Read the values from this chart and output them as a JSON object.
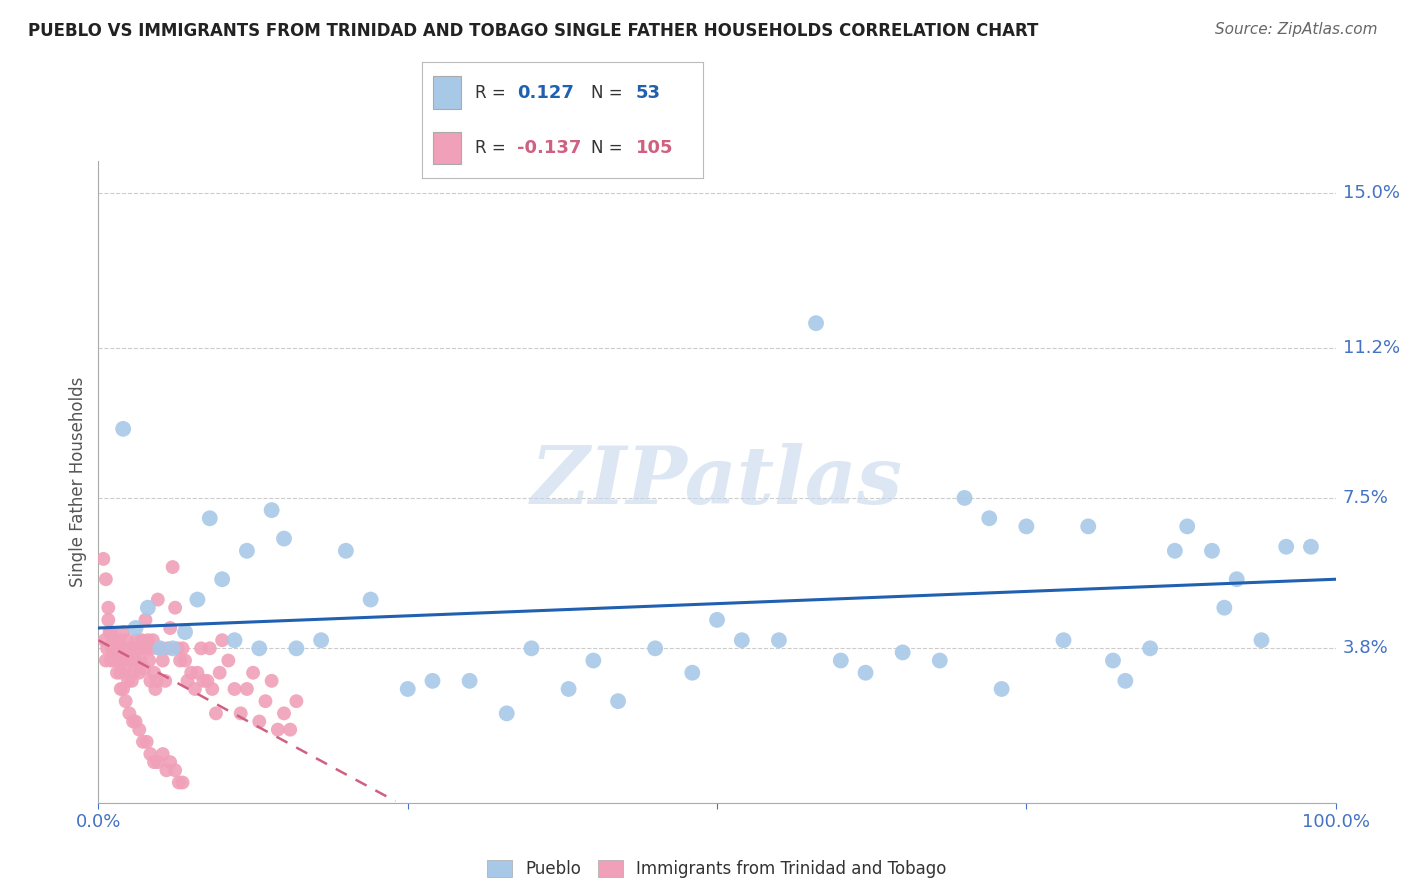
{
  "title": "PUEBLO VS IMMIGRANTS FROM TRINIDAD AND TOBAGO SINGLE FATHER HOUSEHOLDS CORRELATION CHART",
  "source": "Source: ZipAtlas.com",
  "ylabel": "Single Father Households",
  "legend_labels": [
    "Pueblo",
    "Immigrants from Trinidad and Tobago"
  ],
  "pueblo_color": "#a8c8e8",
  "pueblo_line_color": "#2060b0",
  "immigrant_color": "#f0a0b8",
  "immigrant_line_color": "#d06080",
  "r_pueblo": "0.127",
  "n_pueblo": "53",
  "r_immigrant": "-0.137",
  "n_immigrant": "105",
  "xmin": 0.0,
  "xmax": 1.0,
  "ymin": 0.0,
  "ymax": 0.158,
  "yticks": [
    0.0,
    0.038,
    0.075,
    0.112,
    0.15
  ],
  "ytick_labels": [
    "",
    "3.8%",
    "7.5%",
    "11.2%",
    "15.0%"
  ],
  "bg_color": "#ffffff",
  "grid_color": "#cccccc",
  "title_color": "#222222",
  "tick_label_color": "#4472c4",
  "pueblo_x": [
    0.02,
    0.03,
    0.04,
    0.05,
    0.06,
    0.07,
    0.08,
    0.09,
    0.1,
    0.11,
    0.12,
    0.13,
    0.14,
    0.15,
    0.16,
    0.18,
    0.2,
    0.22,
    0.25,
    0.27,
    0.3,
    0.33,
    0.35,
    0.38,
    0.4,
    0.42,
    0.45,
    0.48,
    0.5,
    0.52,
    0.55,
    0.58,
    0.6,
    0.62,
    0.65,
    0.68,
    0.7,
    0.72,
    0.73,
    0.75,
    0.78,
    0.8,
    0.82,
    0.83,
    0.85,
    0.87,
    0.88,
    0.9,
    0.91,
    0.92,
    0.94,
    0.96,
    0.98
  ],
  "pueblo_y": [
    0.092,
    0.043,
    0.048,
    0.038,
    0.038,
    0.042,
    0.05,
    0.07,
    0.055,
    0.04,
    0.062,
    0.038,
    0.072,
    0.065,
    0.038,
    0.04,
    0.062,
    0.05,
    0.028,
    0.03,
    0.03,
    0.022,
    0.038,
    0.028,
    0.035,
    0.025,
    0.038,
    0.032,
    0.045,
    0.04,
    0.04,
    0.118,
    0.035,
    0.032,
    0.037,
    0.035,
    0.075,
    0.07,
    0.028,
    0.068,
    0.04,
    0.068,
    0.035,
    0.03,
    0.038,
    0.062,
    0.068,
    0.062,
    0.048,
    0.055,
    0.04,
    0.063,
    0.063
  ],
  "immigrant_x": [
    0.005,
    0.006,
    0.007,
    0.008,
    0.009,
    0.01,
    0.011,
    0.012,
    0.013,
    0.014,
    0.015,
    0.016,
    0.017,
    0.018,
    0.019,
    0.02,
    0.021,
    0.022,
    0.023,
    0.024,
    0.025,
    0.026,
    0.027,
    0.028,
    0.029,
    0.03,
    0.031,
    0.032,
    0.033,
    0.034,
    0.035,
    0.036,
    0.037,
    0.038,
    0.039,
    0.04,
    0.041,
    0.042,
    0.043,
    0.044,
    0.045,
    0.046,
    0.047,
    0.048,
    0.049,
    0.05,
    0.052,
    0.054,
    0.056,
    0.058,
    0.06,
    0.062,
    0.064,
    0.066,
    0.068,
    0.07,
    0.072,
    0.075,
    0.078,
    0.08,
    0.083,
    0.085,
    0.088,
    0.09,
    0.092,
    0.095,
    0.098,
    0.1,
    0.105,
    0.11,
    0.115,
    0.12,
    0.125,
    0.13,
    0.135,
    0.14,
    0.145,
    0.15,
    0.155,
    0.16,
    0.004,
    0.006,
    0.008,
    0.01,
    0.012,
    0.014,
    0.016,
    0.018,
    0.02,
    0.022,
    0.025,
    0.028,
    0.03,
    0.033,
    0.036,
    0.039,
    0.042,
    0.045,
    0.048,
    0.052,
    0.055,
    0.058,
    0.062,
    0.065,
    0.068
  ],
  "immigrant_y": [
    0.04,
    0.035,
    0.038,
    0.045,
    0.042,
    0.035,
    0.038,
    0.04,
    0.038,
    0.035,
    0.032,
    0.038,
    0.04,
    0.028,
    0.035,
    0.042,
    0.038,
    0.033,
    0.04,
    0.03,
    0.038,
    0.035,
    0.03,
    0.032,
    0.038,
    0.035,
    0.04,
    0.038,
    0.032,
    0.035,
    0.04,
    0.038,
    0.033,
    0.045,
    0.038,
    0.04,
    0.035,
    0.03,
    0.038,
    0.04,
    0.032,
    0.028,
    0.03,
    0.05,
    0.038,
    0.038,
    0.035,
    0.03,
    0.038,
    0.043,
    0.058,
    0.048,
    0.038,
    0.035,
    0.038,
    0.035,
    0.03,
    0.032,
    0.028,
    0.032,
    0.038,
    0.03,
    0.03,
    0.038,
    0.028,
    0.022,
    0.032,
    0.04,
    0.035,
    0.028,
    0.022,
    0.028,
    0.032,
    0.02,
    0.025,
    0.03,
    0.018,
    0.022,
    0.018,
    0.025,
    0.06,
    0.055,
    0.048,
    0.042,
    0.04,
    0.038,
    0.035,
    0.032,
    0.028,
    0.025,
    0.022,
    0.02,
    0.02,
    0.018,
    0.015,
    0.015,
    0.012,
    0.01,
    0.01,
    0.012,
    0.008,
    0.01,
    0.008,
    0.005,
    0.005
  ],
  "watermark_text": "ZIPatlas",
  "watermark_color": "#c5d8ec",
  "watermark_alpha": 0.6
}
